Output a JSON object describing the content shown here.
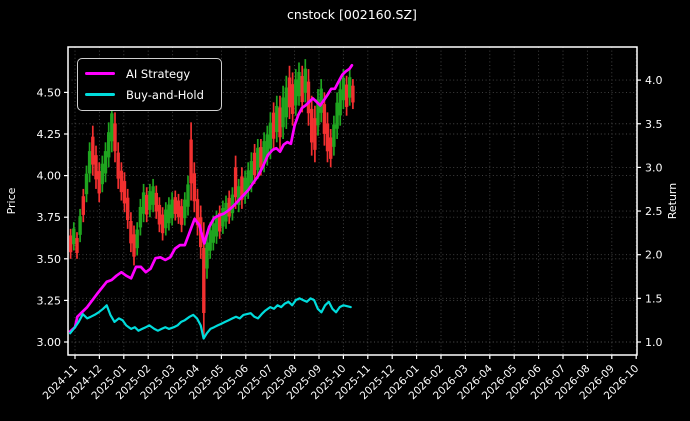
{
  "title": "cnstock [002160.SZ]",
  "colors": {
    "background": "#000000",
    "text": "#ffffff",
    "grid": "#484848",
    "spine": "#ffffff",
    "candle_up": "#1fa51f",
    "candle_down": "#f23030",
    "strategy_line": "#ff00ff",
    "buy_hold_line": "#00dcdc"
  },
  "chart_data": {
    "type": "candlestick_with_return_lines",
    "grid": true,
    "legend_position": "upper left",
    "x_axis": {
      "unit": "months since 2024-11 tick",
      "data_span": [
        -0.2,
        11.4
      ],
      "tick_labels": [
        "2024-11",
        "2024-12",
        "2025-01",
        "2025-02",
        "2025-03",
        "2025-04",
        "2025-05",
        "2025-06",
        "2025-07",
        "2025-08",
        "2025-09",
        "2025-10",
        "2025-11",
        "2025-12",
        "2026-01",
        "2026-02",
        "2026-03",
        "2026-04",
        "2026-05",
        "2026-06",
        "2026-07",
        "2026-08",
        "2026-09",
        "2026-10"
      ]
    },
    "price_axis": {
      "label": "Price",
      "ticks": [
        3.0,
        3.25,
        3.5,
        3.75,
        4.0,
        4.25,
        4.5
      ],
      "range": [
        2.92,
        4.78
      ]
    },
    "return_axis": {
      "label": "Return",
      "ticks": [
        1.0,
        1.5,
        2.0,
        2.5,
        3.0,
        3.5,
        4.0
      ],
      "range": [
        0.85,
        4.38
      ]
    },
    "candles_price": [
      [
        -0.18,
        3.5,
        3.68,
        "r"
      ],
      [
        -0.05,
        3.55,
        3.72,
        "g"
      ],
      [
        0.08,
        3.5,
        3.66,
        "r"
      ],
      [
        0.21,
        3.6,
        3.8,
        "g"
      ],
      [
        0.34,
        3.72,
        3.92,
        "r"
      ],
      [
        0.47,
        3.84,
        4.06,
        "g"
      ],
      [
        0.6,
        3.96,
        4.2,
        "g"
      ],
      [
        0.73,
        4.0,
        4.3,
        "r"
      ],
      [
        0.86,
        3.92,
        4.18,
        "r"
      ],
      [
        0.99,
        3.84,
        4.08,
        "r"
      ],
      [
        1.12,
        3.9,
        4.12,
        "g"
      ],
      [
        1.25,
        3.96,
        4.2,
        "g"
      ],
      [
        1.38,
        4.05,
        4.32,
        "g"
      ],
      [
        1.51,
        4.14,
        4.44,
        "g"
      ],
      [
        1.64,
        4.08,
        4.38,
        "r"
      ],
      [
        1.77,
        3.92,
        4.2,
        "r"
      ],
      [
        1.9,
        3.85,
        4.08,
        "r"
      ],
      [
        2.03,
        3.78,
        4.02,
        "r"
      ],
      [
        2.16,
        3.68,
        3.92,
        "r"
      ],
      [
        2.29,
        3.54,
        3.78,
        "r"
      ],
      [
        2.42,
        3.46,
        3.7,
        "r"
      ],
      [
        2.55,
        3.52,
        3.72,
        "g"
      ],
      [
        2.68,
        3.64,
        3.86,
        "g"
      ],
      [
        2.81,
        3.72,
        3.95,
        "g"
      ],
      [
        2.94,
        3.72,
        3.93,
        "r"
      ],
      [
        3.07,
        3.75,
        3.95,
        "g"
      ],
      [
        3.2,
        3.78,
        3.98,
        "g"
      ],
      [
        3.33,
        3.74,
        3.94,
        "r"
      ],
      [
        3.46,
        3.66,
        3.87,
        "r"
      ],
      [
        3.59,
        3.61,
        3.81,
        "r"
      ],
      [
        3.72,
        3.64,
        3.84,
        "g"
      ],
      [
        3.85,
        3.67,
        3.87,
        "g"
      ],
      [
        3.98,
        3.7,
        3.9,
        "g"
      ],
      [
        4.11,
        3.73,
        3.91,
        "r"
      ],
      [
        4.24,
        3.71,
        3.89,
        "r"
      ],
      [
        4.37,
        3.66,
        3.86,
        "r"
      ],
      [
        4.5,
        3.7,
        3.9,
        "g"
      ],
      [
        4.63,
        3.76,
        4.0,
        "g"
      ],
      [
        4.76,
        3.85,
        4.32,
        "r"
      ],
      [
        4.89,
        3.78,
        4.08,
        "r"
      ],
      [
        5.02,
        3.64,
        3.92,
        "r"
      ],
      [
        5.15,
        3.5,
        3.82,
        "r"
      ],
      [
        5.28,
        3.02,
        3.72,
        "r"
      ],
      [
        5.41,
        3.38,
        3.66,
        "g"
      ],
      [
        5.54,
        3.5,
        3.72,
        "g"
      ],
      [
        5.67,
        3.55,
        3.76,
        "g"
      ],
      [
        5.8,
        3.59,
        3.79,
        "g"
      ],
      [
        5.93,
        3.62,
        3.82,
        "r"
      ],
      [
        6.06,
        3.65,
        3.85,
        "g"
      ],
      [
        6.19,
        3.68,
        3.88,
        "g"
      ],
      [
        6.32,
        3.71,
        3.91,
        "r"
      ],
      [
        6.45,
        3.73,
        3.93,
        "g"
      ],
      [
        6.58,
        3.8,
        4.12,
        "r"
      ],
      [
        6.71,
        3.78,
        3.98,
        "g"
      ],
      [
        6.84,
        3.8,
        4.05,
        "r"
      ],
      [
        6.97,
        3.83,
        4.03,
        "g"
      ],
      [
        7.1,
        3.86,
        4.08,
        "g"
      ],
      [
        7.23,
        3.9,
        4.14,
        "g"
      ],
      [
        7.36,
        3.95,
        4.19,
        "r"
      ],
      [
        7.49,
        3.98,
        4.22,
        "g"
      ],
      [
        7.62,
        4.0,
        4.22,
        "r"
      ],
      [
        7.75,
        4.02,
        4.26,
        "g"
      ],
      [
        7.88,
        4.06,
        4.3,
        "g"
      ],
      [
        8.01,
        4.1,
        4.38,
        "g"
      ],
      [
        8.14,
        4.16,
        4.44,
        "r"
      ],
      [
        8.27,
        4.2,
        4.48,
        "g"
      ],
      [
        8.4,
        4.16,
        4.48,
        "r"
      ],
      [
        8.53,
        4.22,
        4.54,
        "g"
      ],
      [
        8.66,
        4.28,
        4.6,
        "g"
      ],
      [
        8.79,
        4.34,
        4.66,
        "r"
      ],
      [
        8.92,
        4.3,
        4.62,
        "r"
      ],
      [
        9.05,
        4.36,
        4.64,
        "g"
      ],
      [
        9.18,
        4.42,
        4.68,
        "g"
      ],
      [
        9.31,
        4.38,
        4.66,
        "r"
      ],
      [
        9.44,
        4.44,
        4.7,
        "g"
      ],
      [
        9.57,
        4.3,
        4.64,
        "r"
      ],
      [
        9.7,
        4.12,
        4.48,
        "r"
      ],
      [
        9.83,
        4.08,
        4.42,
        "r"
      ],
      [
        9.96,
        4.24,
        4.52,
        "g"
      ],
      [
        10.09,
        4.32,
        4.58,
        "g"
      ],
      [
        10.22,
        4.18,
        4.5,
        "r"
      ],
      [
        10.35,
        4.08,
        4.38,
        "r"
      ],
      [
        10.48,
        4.05,
        4.28,
        "r"
      ],
      [
        10.61,
        4.12,
        4.36,
        "g"
      ],
      [
        10.74,
        4.22,
        4.5,
        "g"
      ],
      [
        10.87,
        4.3,
        4.58,
        "g"
      ],
      [
        11.0,
        4.4,
        4.64,
        "g"
      ],
      [
        11.13,
        4.36,
        4.6,
        "r"
      ],
      [
        11.26,
        4.42,
        4.64,
        "g"
      ],
      [
        11.39,
        4.4,
        4.58,
        "r"
      ]
    ],
    "series": [
      {
        "name": "AI Strategy",
        "axis": "return",
        "color": "#ff00ff",
        "points": [
          [
            -0.2,
            1.12
          ],
          [
            0,
            1.17
          ],
          [
            0.1,
            1.29
          ],
          [
            0.5,
            1.4
          ],
          [
            0.9,
            1.55
          ],
          [
            1.3,
            1.69
          ],
          [
            1.5,
            1.71
          ],
          [
            1.7,
            1.76
          ],
          [
            1.9,
            1.8
          ],
          [
            2.1,
            1.76
          ],
          [
            2.3,
            1.73
          ],
          [
            2.5,
            1.86
          ],
          [
            2.7,
            1.86
          ],
          [
            2.9,
            1.8
          ],
          [
            3.1,
            1.84
          ],
          [
            3.3,
            1.96
          ],
          [
            3.5,
            1.97
          ],
          [
            3.7,
            1.94
          ],
          [
            3.9,
            1.97
          ],
          [
            4.1,
            2.07
          ],
          [
            4.3,
            2.11
          ],
          [
            4.5,
            2.11
          ],
          [
            4.7,
            2.26
          ],
          [
            4.9,
            2.41
          ],
          [
            5.1,
            2.34
          ],
          [
            5.3,
            2.13
          ],
          [
            5.5,
            2.32
          ],
          [
            5.7,
            2.42
          ],
          [
            5.9,
            2.45
          ],
          [
            6.1,
            2.47
          ],
          [
            6.3,
            2.51
          ],
          [
            6.5,
            2.56
          ],
          [
            6.7,
            2.62
          ],
          [
            6.9,
            2.68
          ],
          [
            7.1,
            2.74
          ],
          [
            7.3,
            2.82
          ],
          [
            7.5,
            2.9
          ],
          [
            7.7,
            3.01
          ],
          [
            7.9,
            3.14
          ],
          [
            8.1,
            3.2
          ],
          [
            8.25,
            3.22
          ],
          [
            8.4,
            3.18
          ],
          [
            8.55,
            3.26
          ],
          [
            8.7,
            3.29
          ],
          [
            8.85,
            3.27
          ],
          [
            9.0,
            3.48
          ],
          [
            9.15,
            3.6
          ],
          [
            9.3,
            3.68
          ],
          [
            9.45,
            3.71
          ],
          [
            9.6,
            3.75
          ],
          [
            9.75,
            3.79
          ],
          [
            9.9,
            3.75
          ],
          [
            10.05,
            3.71
          ],
          [
            10.2,
            3.77
          ],
          [
            10.35,
            3.83
          ],
          [
            10.5,
            3.9
          ],
          [
            10.65,
            3.9
          ],
          [
            10.8,
            3.98
          ],
          [
            10.95,
            4.06
          ],
          [
            11.1,
            4.1
          ],
          [
            11.25,
            4.13
          ],
          [
            11.35,
            4.17
          ]
        ]
      },
      {
        "name": "Buy-and-Hold",
        "axis": "return",
        "color": "#00dcdc",
        "points": [
          [
            -0.2,
            1.1
          ],
          [
            0,
            1.17
          ],
          [
            0.15,
            1.23
          ],
          [
            0.32,
            1.32
          ],
          [
            0.5,
            1.27
          ],
          [
            0.65,
            1.29
          ],
          [
            0.8,
            1.31
          ],
          [
            0.97,
            1.34
          ],
          [
            1.15,
            1.38
          ],
          [
            1.3,
            1.42
          ],
          [
            1.45,
            1.31
          ],
          [
            1.62,
            1.23
          ],
          [
            1.8,
            1.27
          ],
          [
            1.95,
            1.25
          ],
          [
            2.1,
            1.19
          ],
          [
            2.3,
            1.15
          ],
          [
            2.45,
            1.17
          ],
          [
            2.6,
            1.13
          ],
          [
            2.75,
            1.15
          ],
          [
            2.9,
            1.17
          ],
          [
            3.05,
            1.19
          ],
          [
            3.25,
            1.15
          ],
          [
            3.4,
            1.13
          ],
          [
            3.55,
            1.15
          ],
          [
            3.7,
            1.17
          ],
          [
            3.85,
            1.15
          ],
          [
            4.05,
            1.17
          ],
          [
            4.2,
            1.19
          ],
          [
            4.35,
            1.23
          ],
          [
            4.5,
            1.25
          ],
          [
            4.7,
            1.29
          ],
          [
            4.85,
            1.31
          ],
          [
            5.0,
            1.27
          ],
          [
            5.15,
            1.19
          ],
          [
            5.27,
            1.04
          ],
          [
            5.4,
            1.1
          ],
          [
            5.55,
            1.15
          ],
          [
            5.7,
            1.17
          ],
          [
            5.85,
            1.19
          ],
          [
            6.0,
            1.21
          ],
          [
            6.15,
            1.23
          ],
          [
            6.3,
            1.25
          ],
          [
            6.45,
            1.27
          ],
          [
            6.6,
            1.29
          ],
          [
            6.75,
            1.27
          ],
          [
            6.9,
            1.31
          ],
          [
            7.05,
            1.32
          ],
          [
            7.2,
            1.33
          ],
          [
            7.35,
            1.29
          ],
          [
            7.5,
            1.27
          ],
          [
            7.65,
            1.32
          ],
          [
            7.8,
            1.36
          ],
          [
            8.0,
            1.4
          ],
          [
            8.15,
            1.38
          ],
          [
            8.3,
            1.42
          ],
          [
            8.45,
            1.4
          ],
          [
            8.6,
            1.44
          ],
          [
            8.75,
            1.46
          ],
          [
            8.9,
            1.42
          ],
          [
            9.05,
            1.48
          ],
          [
            9.2,
            1.5
          ],
          [
            9.35,
            1.48
          ],
          [
            9.5,
            1.46
          ],
          [
            9.65,
            1.5
          ],
          [
            9.8,
            1.48
          ],
          [
            9.95,
            1.38
          ],
          [
            10.1,
            1.34
          ],
          [
            10.25,
            1.42
          ],
          [
            10.4,
            1.46
          ],
          [
            10.55,
            1.38
          ],
          [
            10.7,
            1.34
          ],
          [
            10.85,
            1.4
          ],
          [
            11.0,
            1.42
          ],
          [
            11.15,
            1.41
          ],
          [
            11.3,
            1.4
          ]
        ]
      }
    ]
  }
}
